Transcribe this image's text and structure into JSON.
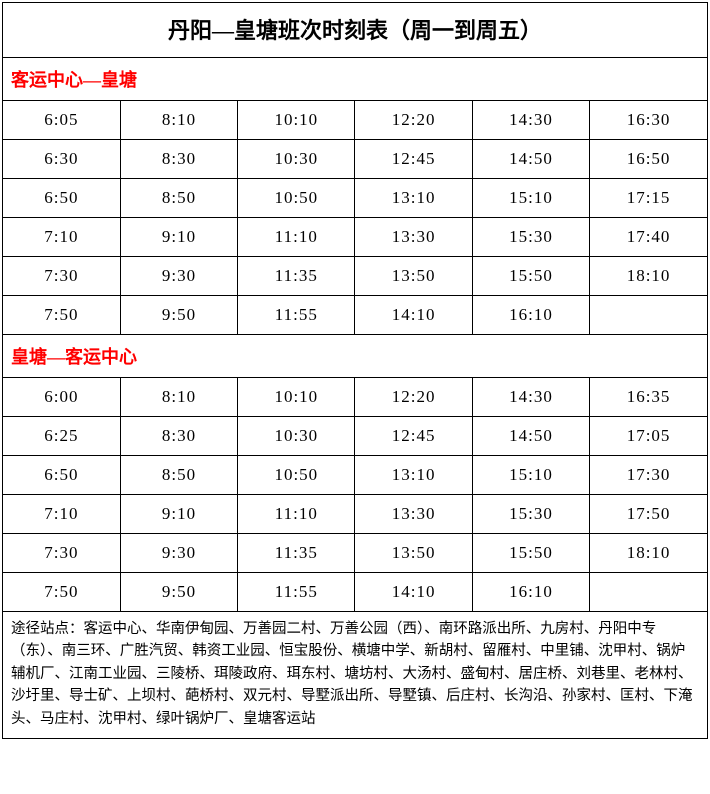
{
  "title": "丹阳—皇塘班次时刻表（周一到周五）",
  "section1": {
    "header": "客运中心—皇塘",
    "rows": [
      [
        "6:05",
        "8:10",
        "10:10",
        "12:20",
        "14:30",
        "16:30"
      ],
      [
        "6:30",
        "8:30",
        "10:30",
        "12:45",
        "14:50",
        "16:50"
      ],
      [
        "6:50",
        "8:50",
        "10:50",
        "13:10",
        "15:10",
        "17:15"
      ],
      [
        "7:10",
        "9:10",
        "11:10",
        "13:30",
        "15:30",
        "17:40"
      ],
      [
        "7:30",
        "9:30",
        "11:35",
        "13:50",
        "15:50",
        "18:10"
      ],
      [
        "7:50",
        "9:50",
        "11:55",
        "14:10",
        "16:10",
        ""
      ]
    ]
  },
  "section2": {
    "header": "皇塘—客运中心",
    "rows": [
      [
        "6:00",
        "8:10",
        "10:10",
        "12:20",
        "14:30",
        "16:35"
      ],
      [
        "6:25",
        "8:30",
        "10:30",
        "12:45",
        "14:50",
        "17:05"
      ],
      [
        "6:50",
        "8:50",
        "10:50",
        "13:10",
        "15:10",
        "17:30"
      ],
      [
        "7:10",
        "9:10",
        "11:10",
        "13:30",
        "15:30",
        "17:50"
      ],
      [
        "7:30",
        "9:30",
        "11:35",
        "13:50",
        "15:50",
        "18:10"
      ],
      [
        "7:50",
        "9:50",
        "11:55",
        "14:10",
        "16:10",
        ""
      ]
    ]
  },
  "footer": "途径站点：客运中心、华南伊甸园、万善园二村、万善公园（西）、南环路派出所、九房村、丹阳中专（东）、南三环、广胜汽贸、韩资工业园、恒宝股份、横塘中学、新胡村、留雁村、中里铺、沈甲村、锅炉辅机厂、江南工业园、三陵桥、珥陵政府、珥东村、塘坊村、大汤村、盛甸村、居庄桥、刘巷里、老林村、沙圩里、导士矿、上坝村、葩桥村、双元村、导墅派出所、导墅镇、后庄村、长沟沿、孙家村、匡村、下淹头、马庄村、沈甲村、绿叶锅炉厂、皇塘客运站",
  "columns": 6,
  "colors": {
    "header_text": "#ff0000",
    "border": "#000000",
    "text": "#000000",
    "background": "#ffffff"
  },
  "typography": {
    "title_fontsize": 22,
    "section_fontsize": 18,
    "cell_fontsize": 17,
    "footer_fontsize": 14.5,
    "font_family": "SimSun"
  }
}
